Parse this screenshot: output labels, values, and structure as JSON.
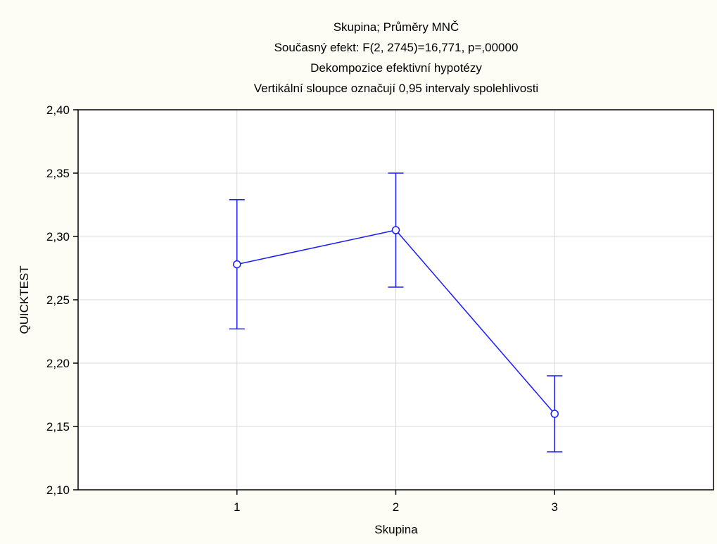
{
  "chart_data": {
    "type": "line",
    "title_lines": [
      "Skupina; Průměry MNČ",
      "Současný efekt: F(2, 2745)=16,771, p=,00000",
      "Dekompozice efektivní hypotézy",
      "Vertikální sloupce označují 0,95 intervaly spolehlivosti"
    ],
    "xlabel": "Skupina",
    "ylabel": "QUICKTEST",
    "categories": [
      "1",
      "2",
      "3"
    ],
    "xlim": [
      0.0,
      4.0
    ],
    "ylim": [
      2.1,
      2.4
    ],
    "yticks": [
      2.1,
      2.15,
      2.2,
      2.25,
      2.3,
      2.35,
      2.4
    ],
    "ytick_labels": [
      "2,10",
      "2,15",
      "2,20",
      "2,25",
      "2,30",
      "2,35",
      "2,40"
    ],
    "series": [
      {
        "values": [
          2.278,
          2.305,
          2.16
        ],
        "ci_lower": [
          2.227,
          2.26,
          2.13
        ],
        "ci_upper": [
          2.329,
          2.35,
          2.19
        ]
      }
    ],
    "grid": true,
    "line_color": "#1a1aff",
    "plot_background": "#ffffff",
    "page_background": "#fdfdf6"
  }
}
